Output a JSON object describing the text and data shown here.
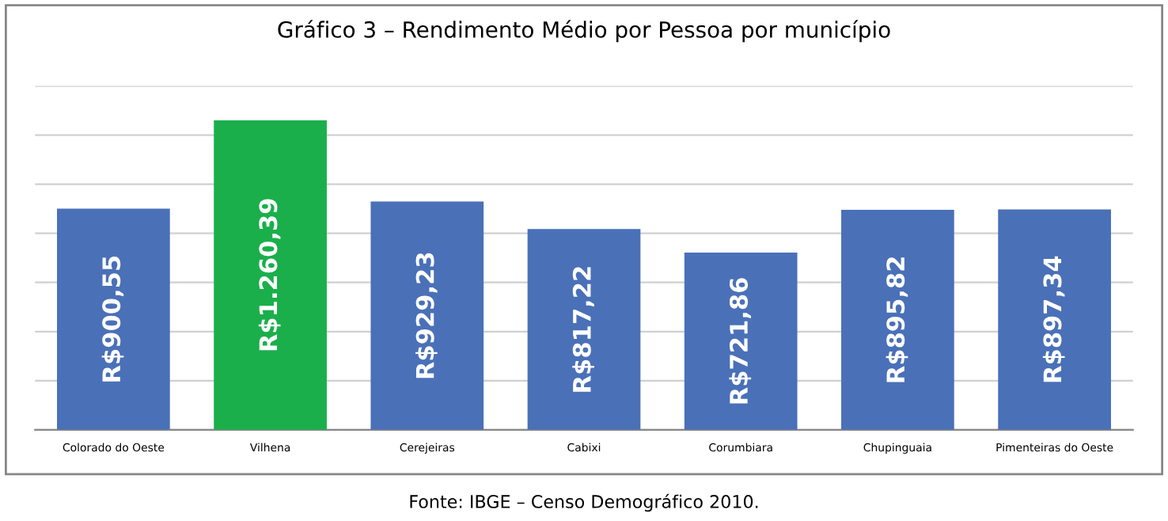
{
  "chart_data": {
    "type": "bar",
    "title": "Gráfico 3 – Rendimento Médio por Pessoa por município",
    "categories": [
      "Colorado do Oeste",
      "Vilhena",
      "Cerejeiras",
      "Cabixi",
      "Corumbiara",
      "Chupinguaia",
      "Pimenteiras do Oeste"
    ],
    "values": [
      900.55,
      1260.39,
      929.23,
      817.22,
      721.86,
      895.82,
      897.34
    ],
    "value_labels": [
      "R$900,55",
      "R$1.260,39",
      "R$929,23",
      "R$817,22",
      "R$721,86",
      "R$895,82",
      "R$897,34"
    ],
    "colors": [
      "#4a70b8",
      "#1aaf4b",
      "#4a70b8",
      "#4a70b8",
      "#4a70b8",
      "#4a70b8",
      "#4a70b8"
    ],
    "ylim": [
      0,
      1400
    ],
    "yticks": [
      {
        "value": 0,
        "label": null
      },
      {
        "value": 200,
        "label": null
      },
      {
        "value": 400,
        "label": null
      },
      {
        "value": 600,
        "label": null
      },
      {
        "value": 800,
        "label": null
      },
      {
        "value": 1000,
        "label": null
      },
      {
        "value": 1200,
        "label": null
      },
      {
        "value": 1400,
        "label": null
      }
    ],
    "grid": "y",
    "annotations": [
      "Fonte: IBGE – Censo Demográfico 2010."
    ]
  }
}
